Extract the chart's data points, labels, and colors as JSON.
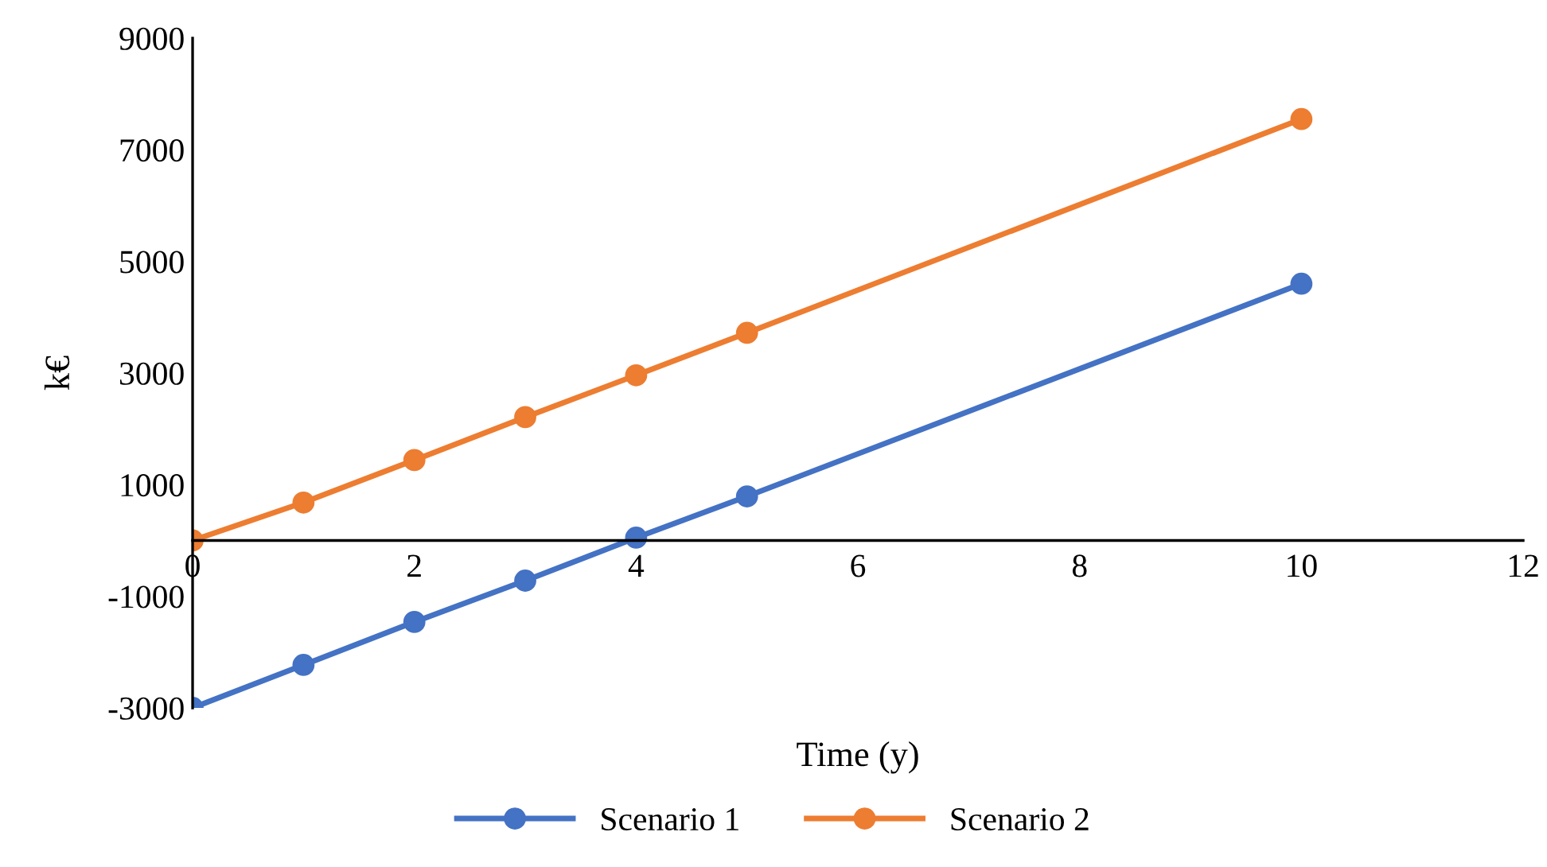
{
  "chart_data": {
    "type": "line",
    "xlabel": "Time (y)",
    "ylabel": "k€",
    "x": [
      0,
      1,
      2,
      3,
      4,
      5,
      10
    ],
    "series": [
      {
        "name": "Scenario 1",
        "color": "#4472c4",
        "values": [
          -3000,
          -2230,
          -1460,
          -720,
          50,
          790,
          4600
        ]
      },
      {
        "name": "Scenario 2",
        "color": "#ed7d31",
        "values": [
          0,
          680,
          1440,
          2210,
          2960,
          3720,
          7550
        ]
      }
    ],
    "xlim": [
      0,
      12
    ],
    "xticks": [
      0,
      2,
      4,
      6,
      8,
      10,
      12
    ],
    "ylim": [
      -3000,
      9000
    ],
    "yticks": [
      -3000,
      -1000,
      1000,
      3000,
      5000,
      7000,
      9000
    ],
    "grid": false,
    "legend": "bottom",
    "marker": "circle",
    "line_style": "solid"
  }
}
